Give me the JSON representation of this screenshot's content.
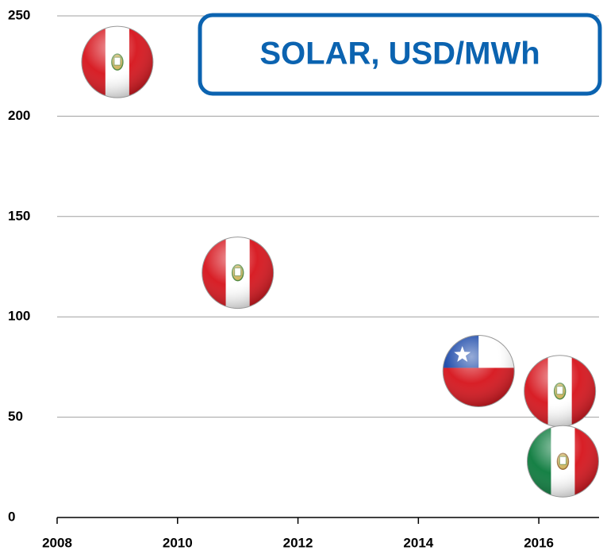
{
  "chart_data": {
    "type": "scatter",
    "title": "SOLAR, USD/MWh",
    "x": [
      2009,
      2011,
      2015,
      2016.35,
      2016.4
    ],
    "values": [
      227,
      122,
      73,
      63,
      28
    ],
    "xlim": [
      2008,
      2017
    ],
    "xticks": [
      2008,
      2010,
      2012,
      2014,
      2016
    ],
    "ylim": [
      0,
      250
    ],
    "yticks": [
      0,
      50,
      100,
      150,
      200,
      250
    ],
    "grid": true,
    "title_color": "#0b63b0"
  }
}
